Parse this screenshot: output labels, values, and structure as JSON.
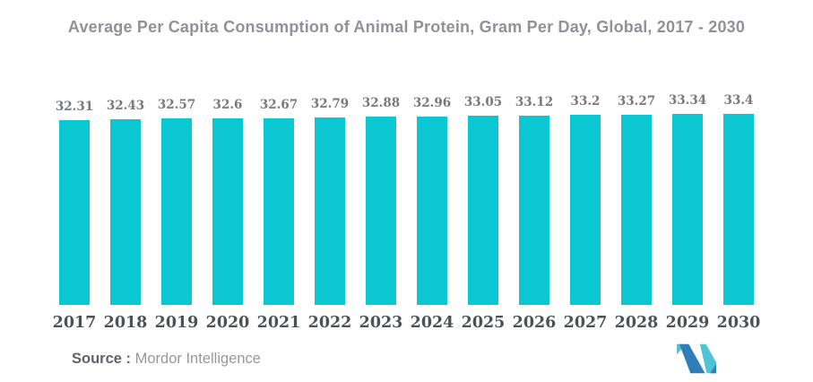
{
  "chart_data": {
    "type": "bar",
    "title": "Average Per Capita Consumption of Animal Protein, Gram Per Day, Global, 2017 - 2030",
    "categories": [
      "2017",
      "2018",
      "2019",
      "2020",
      "2021",
      "2022",
      "2023",
      "2024",
      "2025",
      "2026",
      "2027",
      "2028",
      "2029",
      "2030"
    ],
    "values": [
      32.31,
      32.43,
      32.57,
      32.6,
      32.67,
      32.79,
      32.88,
      32.96,
      33.05,
      33.12,
      33.2,
      33.27,
      33.34,
      33.4
    ],
    "ylabel": "",
    "xlabel": "",
    "ylim": [
      0,
      33.4
    ],
    "grid": false,
    "legend": "none",
    "value_labels_shown": true
  },
  "footer": {
    "source_label": "Source :",
    "source_value": "Mordor Intelligence"
  },
  "colors": {
    "bar": "#0bc7d1",
    "title_text": "#8f9297",
    "value_label_text": "#76797d",
    "year_label_text": "#4e5257",
    "logo_blue": "#2e7fb8",
    "logo_teal": "#4fc4d5"
  }
}
